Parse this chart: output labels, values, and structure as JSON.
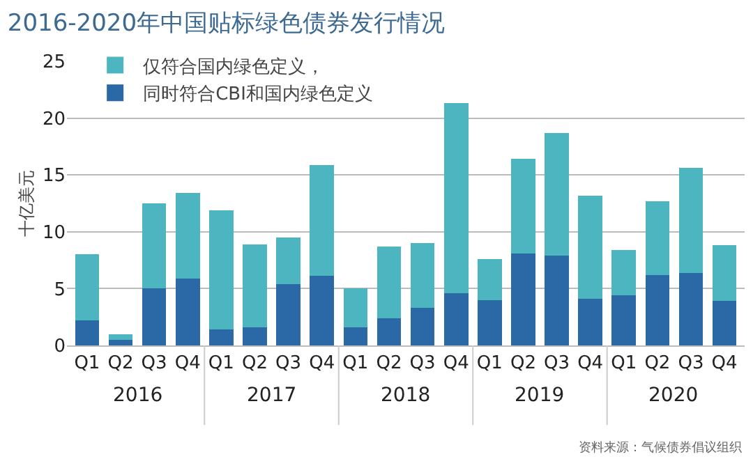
{
  "chart_data": {
    "type": "bar",
    "title": "2016-2020年中国贴标绿色债券发行情况",
    "ylabel": "十亿美元",
    "categories": [
      "Q1",
      "Q2",
      "Q3",
      "Q4",
      "Q1",
      "Q2",
      "Q3",
      "Q4",
      "Q1",
      "Q2",
      "Q3",
      "Q4",
      "Q1",
      "Q2",
      "Q3",
      "Q4",
      "Q1",
      "Q2",
      "Q3",
      "Q4"
    ],
    "stacked": true,
    "series": [
      {
        "name": "同时符合CBI和国内绿色定义",
        "color": "#2a69a6",
        "values": [
          2.2,
          0.5,
          5.0,
          5.9,
          1.4,
          1.6,
          5.4,
          6.1,
          1.6,
          2.4,
          3.3,
          4.6,
          4.0,
          8.1,
          7.9,
          4.1,
          4.4,
          6.2,
          6.4,
          3.9
        ]
      },
      {
        "name": "仅符合国内绿色定义，",
        "color": "#4db5c0",
        "values": [
          5.8,
          0.5,
          7.5,
          7.5,
          10.5,
          7.3,
          4.1,
          9.8,
          3.4,
          6.3,
          5.7,
          16.7,
          3.6,
          8.3,
          10.8,
          9.1,
          4.0,
          6.5,
          9.2,
          4.9
        ]
      }
    ],
    "ylim": [
      0,
      25
    ],
    "yticks": [
      0,
      5,
      10,
      15,
      20,
      25
    ],
    "grid": "y",
    "legend": "top left",
    "annotations": [
      "2016",
      "2017",
      "2018",
      "2019",
      "2020",
      "资料来源：气候债券倡议组织"
    ]
  }
}
